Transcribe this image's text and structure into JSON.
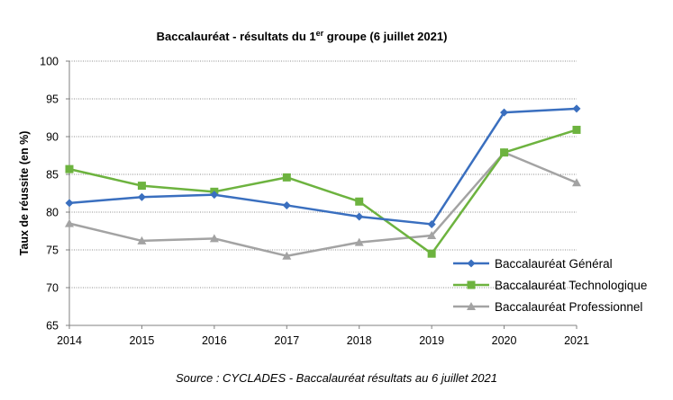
{
  "chart_data": {
    "type": "line",
    "title": {
      "main": "Baccalauréat - résultats du 1",
      "superscript": "er",
      "rest": " groupe (6 juillet 2021)"
    },
    "ylabel": "Taux de réussite (en %)",
    "xlabel": "",
    "x": [
      "2014",
      "2015",
      "2016",
      "2017",
      "2018",
      "2019",
      "2020",
      "2021"
    ],
    "ylim": [
      65,
      100
    ],
    "yticks": [
      65,
      70,
      75,
      80,
      85,
      90,
      95,
      100
    ],
    "grid": "horizontal dotted",
    "legend_position": "bottom-right",
    "series": [
      {
        "name": "Baccalauréat Général",
        "color": "#3a6fbf",
        "marker": "diamond",
        "values": [
          81.2,
          82.0,
          82.3,
          80.9,
          79.4,
          78.4,
          93.2,
          93.7
        ]
      },
      {
        "name": "Baccalauréat Technologique",
        "color": "#6db33f",
        "marker": "square",
        "values": [
          85.7,
          83.5,
          82.7,
          84.6,
          81.4,
          74.5,
          87.9,
          90.9
        ]
      },
      {
        "name": "Baccalauréat Professionnel",
        "color": "#a3a3a3",
        "marker": "triangle",
        "values": [
          78.5,
          76.2,
          76.5,
          74.2,
          76.0,
          76.9,
          87.9,
          83.9
        ]
      }
    ]
  },
  "source": "Source : CYCLADES - Baccalauréat résultats au 6 juillet 2021"
}
